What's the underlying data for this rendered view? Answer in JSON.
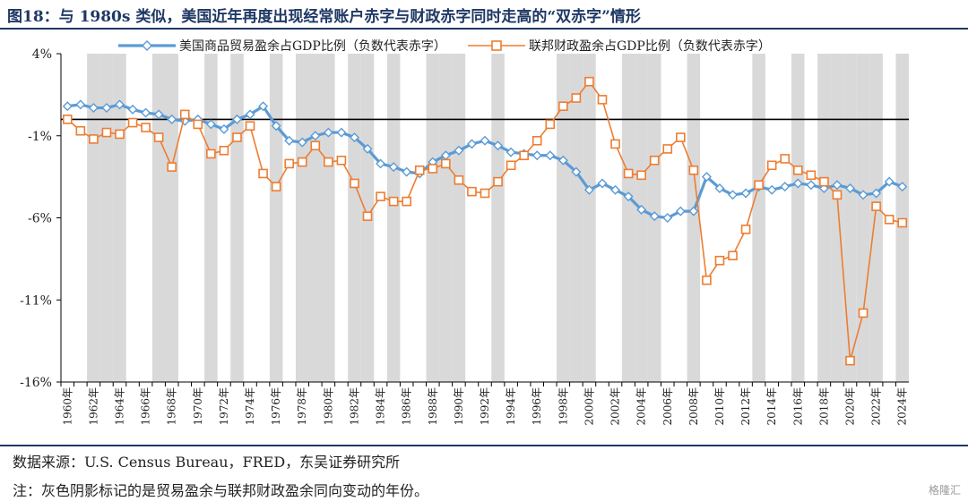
{
  "header": {
    "title": "图18：与 1980s 类似，美国近年再度出现经常账户赤字与财政赤字同时走高的“双赤字”情形"
  },
  "footer": {
    "source": "数据来源：U.S. Census Bureau，FRED，东吴证券研究所",
    "note": "注：灰色阴影标记的是贸易盈余与联邦财政盈余同向变动的年份。",
    "watermark": "格隆汇"
  },
  "colors": {
    "trade": "#5b9bd5",
    "fiscal": "#ed7d31",
    "shade": "#d9d9d9",
    "axis": "#000000"
  },
  "chart_data": {
    "type": "line",
    "title": "",
    "xlabel": "",
    "ylabel": "",
    "ylim": [
      -16,
      4
    ],
    "yticks": [
      4,
      -1,
      -6,
      -11,
      -16
    ],
    "ytick_labels": [
      "4%",
      "-1%",
      "-6%",
      "-11%",
      "-16%"
    ],
    "x": [
      1960,
      1961,
      1962,
      1963,
      1964,
      1965,
      1966,
      1967,
      1968,
      1969,
      1970,
      1971,
      1972,
      1973,
      1974,
      1975,
      1976,
      1977,
      1978,
      1979,
      1980,
      1981,
      1982,
      1983,
      1984,
      1985,
      1986,
      1987,
      1988,
      1989,
      1990,
      1991,
      1992,
      1993,
      1994,
      1995,
      1996,
      1997,
      1998,
      1999,
      2000,
      2001,
      2002,
      2003,
      2004,
      2005,
      2006,
      2007,
      2008,
      2009,
      2010,
      2011,
      2012,
      2013,
      2014,
      2015,
      2016,
      2017,
      2018,
      2019,
      2020,
      2021,
      2022,
      2023,
      2024
    ],
    "xtick_labels": [
      "1960年",
      "1962年",
      "1964年",
      "1966年",
      "1968年",
      "1970年",
      "1972年",
      "1974年",
      "1976年",
      "1978年",
      "1980年",
      "1982年",
      "1984年",
      "1986年",
      "1988年",
      "1990年",
      "1992年",
      "1994年",
      "1996年",
      "1998年",
      "2000年",
      "2002年",
      "2004年",
      "2006年",
      "2008年",
      "2010年",
      "2012年",
      "2014年",
      "2016年",
      "2018年",
      "2020年",
      "2022年",
      "2024年"
    ],
    "shaded_years": [
      1962,
      1963,
      1964,
      1967,
      1968,
      1971,
      1973,
      1976,
      1978,
      1979,
      1980,
      1982,
      1983,
      1985,
      1988,
      1989,
      1990,
      1993,
      1998,
      1999,
      2000,
      2003,
      2004,
      2005,
      2008,
      2013,
      2016,
      2018,
      2019,
      2020,
      2021,
      2022,
      2024
    ],
    "legend": "top",
    "series": [
      {
        "name": "美国商品贸易盈余占GDP比例（负数代表赤字）",
        "values": [
          0.8,
          0.9,
          0.7,
          0.7,
          0.9,
          0.6,
          0.4,
          0.3,
          0.0,
          -0.1,
          0.0,
          -0.3,
          -0.6,
          0.0,
          0.3,
          0.8,
          -0.4,
          -1.3,
          -1.4,
          -1.0,
          -0.8,
          -0.8,
          -1.1,
          -1.8,
          -2.7,
          -2.9,
          -3.2,
          -3.3,
          -2.6,
          -2.2,
          -1.9,
          -1.5,
          -1.3,
          -1.6,
          -2.0,
          -2.1,
          -2.2,
          -2.2,
          -2.5,
          -3.2,
          -4.3,
          -3.9,
          -4.3,
          -4.7,
          -5.5,
          -5.9,
          -6.0,
          -5.6,
          -5.6,
          -3.5,
          -4.2,
          -4.6,
          -4.5,
          -4.1,
          -4.3,
          -4.1,
          -3.9,
          -4.0,
          -4.2,
          -4.0,
          -4.2,
          -4.6,
          -4.5,
          -3.8,
          -4.1
        ]
      },
      {
        "name": "联邦财政盈余占GDP比例（负数代表赤字）",
        "values": [
          0.0,
          -0.7,
          -1.2,
          -0.8,
          -0.9,
          -0.2,
          -0.5,
          -1.1,
          -2.9,
          0.3,
          -0.3,
          -2.1,
          -1.9,
          -1.1,
          -0.4,
          -3.3,
          -4.1,
          -2.7,
          -2.6,
          -1.6,
          -2.6,
          -2.5,
          -3.9,
          -5.9,
          -4.7,
          -5.0,
          -5.0,
          -3.1,
          -3.0,
          -2.7,
          -3.7,
          -4.4,
          -4.5,
          -3.8,
          -2.8,
          -2.2,
          -1.3,
          -0.3,
          0.8,
          1.3,
          2.3,
          1.2,
          -1.5,
          -3.3,
          -3.4,
          -2.5,
          -1.8,
          -1.1,
          -3.1,
          -9.8,
          -8.6,
          -8.3,
          -6.7,
          -4.0,
          -2.8,
          -2.4,
          -3.1,
          -3.4,
          -3.8,
          -4.6,
          -14.7,
          -11.8,
          -5.3,
          -6.1,
          -6.3
        ]
      }
    ]
  }
}
